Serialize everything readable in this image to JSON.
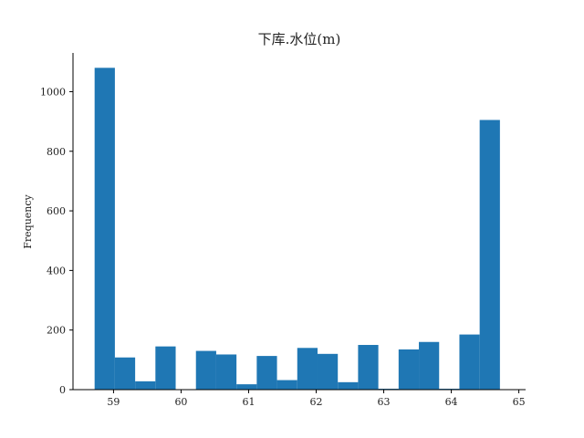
{
  "chart_data": {
    "type": "bar",
    "subtype": "histogram",
    "title": "下库.水位(m)",
    "xlabel": "",
    "ylabel": "Frequency",
    "color": "#1f77b4",
    "xlim": [
      58.4,
      65.1
    ],
    "ylim": [
      0,
      1130
    ],
    "x_ticks": [
      59,
      60,
      61,
      62,
      63,
      64,
      65
    ],
    "y_ticks": [
      0,
      200,
      400,
      600,
      800,
      1000
    ],
    "grid": false,
    "bins": [
      {
        "x0": 58.72,
        "x1": 59.02,
        "count": 1080
      },
      {
        "x0": 59.02,
        "x1": 59.32,
        "count": 108
      },
      {
        "x0": 59.32,
        "x1": 59.62,
        "count": 28
      },
      {
        "x0": 59.62,
        "x1": 59.92,
        "count": 145
      },
      {
        "x0": 59.92,
        "x1": 60.22,
        "count": 0
      },
      {
        "x0": 60.22,
        "x1": 60.52,
        "count": 130
      },
      {
        "x0": 60.52,
        "x1": 60.82,
        "count": 118
      },
      {
        "x0": 60.82,
        "x1": 61.12,
        "count": 18
      },
      {
        "x0": 61.12,
        "x1": 61.42,
        "count": 113
      },
      {
        "x0": 61.42,
        "x1": 61.72,
        "count": 32
      },
      {
        "x0": 61.72,
        "x1": 62.02,
        "count": 140
      },
      {
        "x0": 62.02,
        "x1": 62.32,
        "count": 120
      },
      {
        "x0": 62.32,
        "x1": 62.62,
        "count": 25
      },
      {
        "x0": 62.62,
        "x1": 62.92,
        "count": 150
      },
      {
        "x0": 62.92,
        "x1": 63.22,
        "count": 3
      },
      {
        "x0": 63.22,
        "x1": 63.52,
        "count": 135
      },
      {
        "x0": 63.52,
        "x1": 63.82,
        "count": 160
      },
      {
        "x0": 63.82,
        "x1": 64.12,
        "count": 3
      },
      {
        "x0": 64.12,
        "x1": 64.42,
        "count": 185
      },
      {
        "x0": 64.42,
        "x1": 64.72,
        "count": 905
      }
    ]
  }
}
